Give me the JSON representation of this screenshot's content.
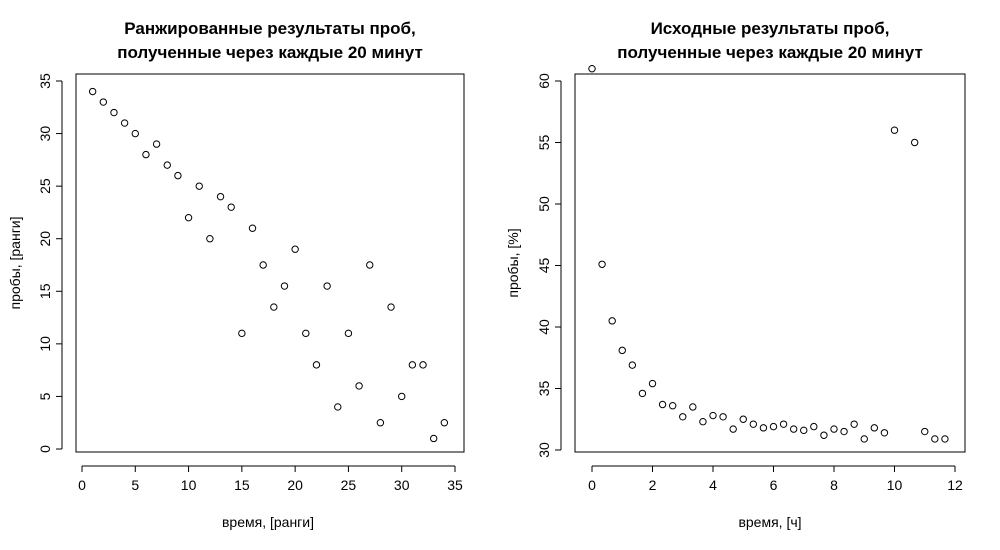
{
  "chart_data": [
    {
      "type": "scatter",
      "title": [
        "Ранжированные результаты проб,",
        "полученные через каждые 20 минут"
      ],
      "xlabel": "время, [ранги]",
      "ylabel": "пробы, [ранги]",
      "xlim": [
        0,
        35
      ],
      "ylim": [
        0,
        35
      ],
      "xticks": [
        0,
        5,
        10,
        15,
        20,
        25,
        30,
        35
      ],
      "yticks": [
        0,
        5,
        10,
        15,
        20,
        25,
        30,
        35
      ],
      "grid": false,
      "x": [
        1,
        2,
        3,
        4,
        5,
        6,
        7,
        8,
        9,
        10,
        11,
        12,
        13,
        14,
        15,
        16,
        17,
        18,
        19,
        20,
        21,
        22,
        23,
        24,
        25,
        26,
        27,
        28,
        29,
        30,
        31,
        32,
        33,
        34
      ],
      "y": [
        34,
        33,
        32,
        31,
        30,
        28,
        29,
        27,
        26,
        22,
        25,
        20,
        24,
        23,
        11,
        21,
        17.5,
        13.5,
        15.5,
        19,
        11,
        8,
        15.5,
        4,
        11,
        6,
        17.5,
        2.5,
        13.5,
        5,
        8,
        8,
        1,
        2.5
      ]
    },
    {
      "type": "scatter",
      "title": [
        "Исходные результаты проб,",
        "полученные через каждые 20 минут"
      ],
      "xlabel": "время, [ч]",
      "ylabel": "пробы, [%]",
      "xlim": [
        0,
        12
      ],
      "ylim": [
        30,
        62
      ],
      "xticks": [
        0,
        2,
        4,
        6,
        8,
        10,
        12
      ],
      "yticks": [
        30,
        35,
        40,
        45,
        50,
        55,
        60
      ],
      "grid": false,
      "x": [
        0,
        0.333,
        0.667,
        1,
        1.333,
        1.667,
        2,
        2.333,
        2.667,
        3,
        3.333,
        3.667,
        4,
        4.333,
        4.667,
        5,
        5.333,
        5.667,
        6,
        6.333,
        6.667,
        7,
        7.333,
        7.667,
        8,
        8.333,
        8.667,
        9,
        9.333,
        9.667,
        10,
        10.333,
        10.667,
        11,
        11.333,
        11.667
      ],
      "y": [
        61,
        45.1,
        40.5,
        38.1,
        36.9,
        34.6,
        35.4,
        33.7,
        33.6,
        32.7,
        33.5,
        32.3,
        32.8,
        32.7,
        31.7,
        32.5,
        32.1,
        31.8,
        31.9,
        32.1,
        31.7,
        31.6,
        31.9,
        31.2,
        31.7,
        31.5,
        32.1,
        30.9,
        31.8,
        31.4,
        56,
        null,
        55,
        31.5,
        30.9,
        30.9
      ]
    }
  ]
}
